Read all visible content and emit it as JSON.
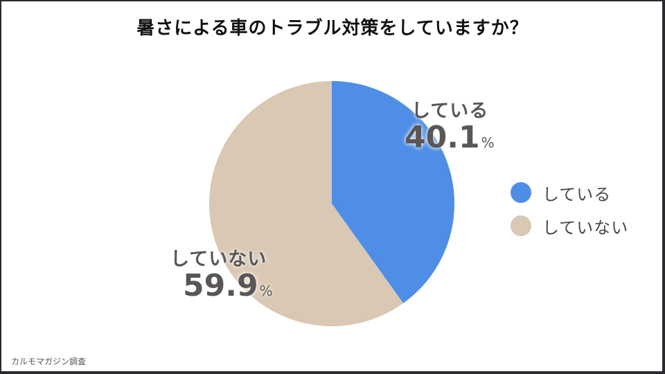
{
  "title": "暑さによる車のトラブル対策をしていますか？",
  "chart_data": {
    "type": "pie",
    "title": "暑さによる車のトラブル対策をしていますか？",
    "categories": [
      "している",
      "していない"
    ],
    "values": [
      40.1,
      59.9
    ],
    "unit": "%",
    "colors": [
      "#4f8ee6",
      "#d9c8b4"
    ],
    "start_angle_deg": 0,
    "direction": "clockwise",
    "legend_position": "right",
    "data_labels": [
      {
        "name": "している",
        "value": "40.1",
        "unit": "%"
      },
      {
        "name": "していない",
        "value": "59.9",
        "unit": "%"
      }
    ]
  },
  "legend": [
    {
      "label": "している",
      "color": "#4f8ee6"
    },
    {
      "label": "していない",
      "color": "#d9c8b4"
    }
  ],
  "source": "カルモマガジン調査"
}
